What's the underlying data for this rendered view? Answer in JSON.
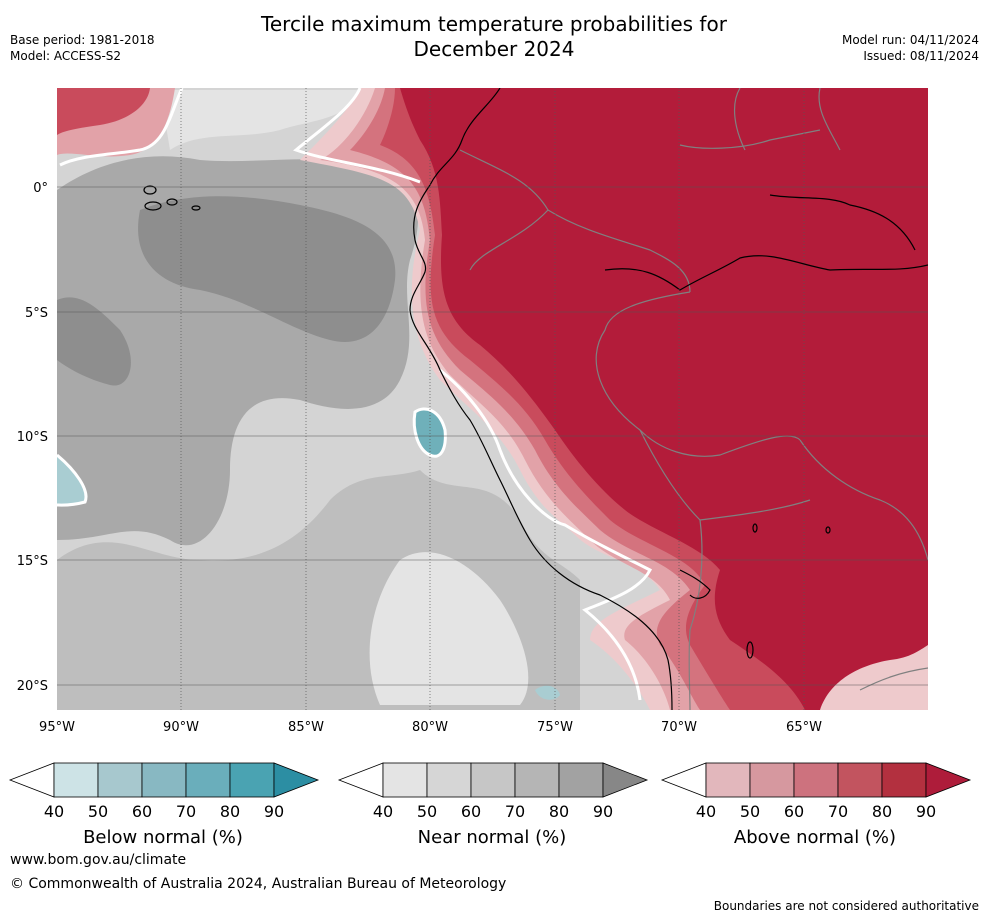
{
  "header": {
    "title_line1": "Tercile maximum temperature probabilities for",
    "title_line2": "December 2024",
    "base_period": "Base period: 1981-2018",
    "model": "Model: ACCESS-S2",
    "model_run": "Model run: 04/11/2024",
    "issued": "Issued: 08/11/2024"
  },
  "map": {
    "lat_labels": [
      "0°",
      "5°S",
      "10°S",
      "15°S",
      "20°S"
    ],
    "lon_labels": [
      "95°W",
      "90°W",
      "85°W",
      "80°W",
      "75°W",
      "70°W",
      "65°W"
    ],
    "colors": {
      "above_90": "#b31c3a",
      "above_80": "#c94b5c",
      "above_70": "#d4737e",
      "above_60": "#e2a2a8",
      "above_50": "#eecacc",
      "near_80": "#8e8e8e",
      "near_70": "#a9a9a9",
      "near_60": "#bebebe",
      "near_50": "#d4d4d4",
      "near_40": "#e4e4e4",
      "below_50": "#a9cdd2",
      "below_70": "#6fb0ba",
      "land_border": "#808080",
      "coast": "#000000"
    }
  },
  "colorbars": [
    {
      "label": "Below normal (%)",
      "ticks": [
        "40",
        "50",
        "60",
        "70",
        "80",
        "90"
      ],
      "colors": [
        "#cde3e6",
        "#a7c8ce",
        "#88b8c2",
        "#6aaebb",
        "#4aa3b2",
        "#2c8ea3"
      ]
    },
    {
      "label": "Near normal (%)",
      "ticks": [
        "40",
        "50",
        "60",
        "70",
        "80",
        "90"
      ],
      "colors": [
        "#e4e4e4",
        "#d6d6d6",
        "#c6c6c6",
        "#b5b5b5",
        "#a2a2a2",
        "#878787"
      ]
    },
    {
      "label": "Above normal (%)",
      "ticks": [
        "40",
        "50",
        "60",
        "70",
        "80",
        "90"
      ],
      "colors": [
        "#e2b7bc",
        "#d6989f",
        "#cd727e",
        "#c2545f",
        "#b3303f",
        "#ae1c3a"
      ]
    }
  ],
  "footer": {
    "url": "www.bom.gov.au/climate",
    "copyright": "© Commonwealth of Australia 2024, Australian Bureau of Meteorology",
    "note": "Boundaries are not considered authoritative"
  }
}
